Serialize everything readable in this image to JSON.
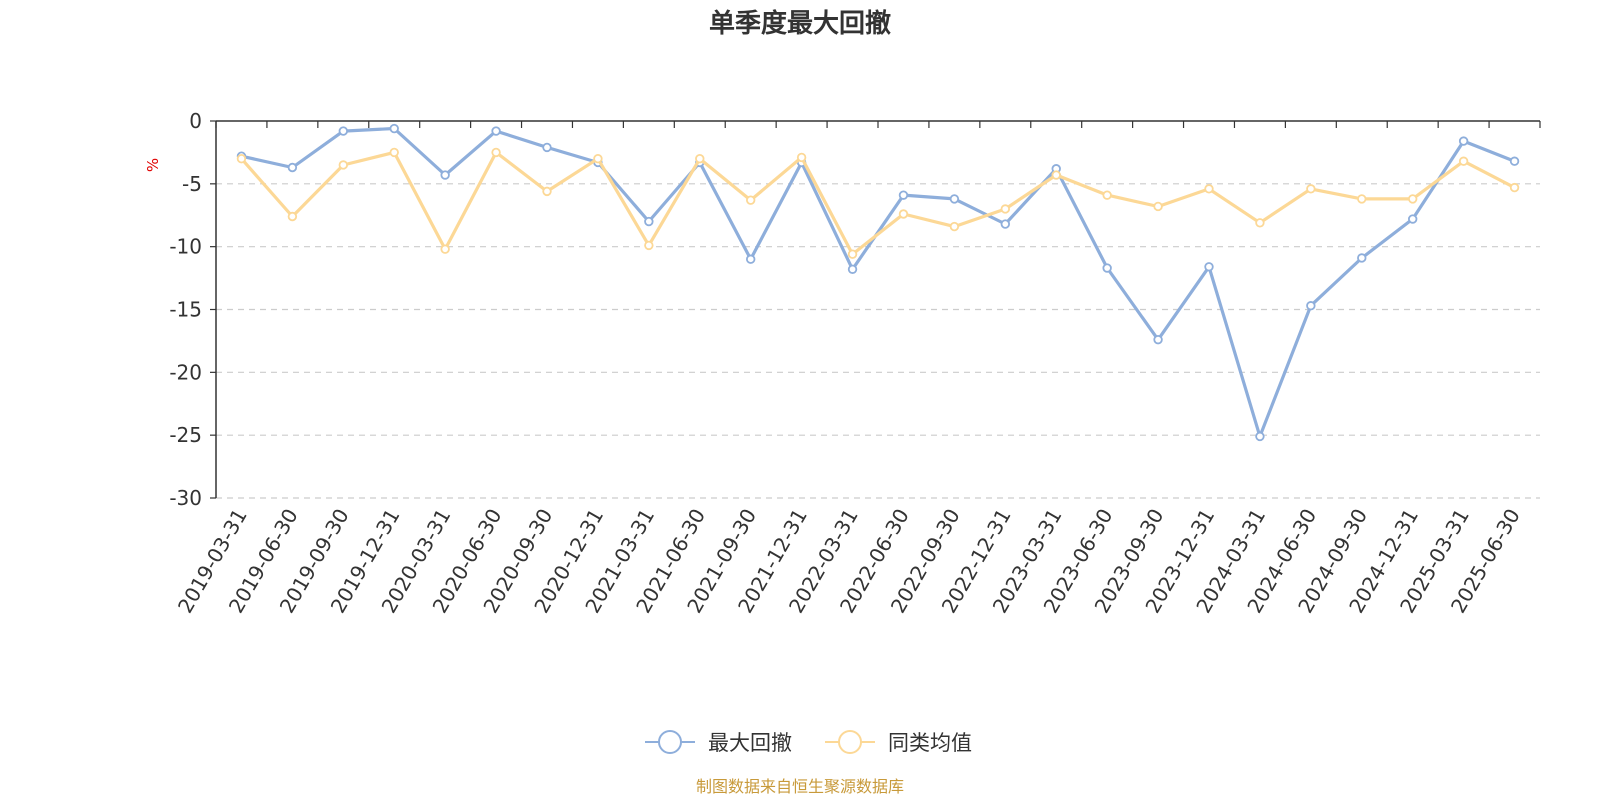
{
  "chart_data": {
    "type": "line",
    "title": "单季度最大回撤",
    "ylabel": "%",
    "ylim": [
      -30,
      0
    ],
    "yticks": [
      0,
      -5,
      -10,
      -15,
      -20,
      -25,
      -30
    ],
    "grid": true,
    "legend_position": "bottom",
    "categories": [
      "2019-03-31",
      "2019-06-30",
      "2019-09-30",
      "2019-12-31",
      "2020-03-31",
      "2020-06-30",
      "2020-09-30",
      "2020-12-31",
      "2021-03-31",
      "2021-06-30",
      "2021-09-30",
      "2021-12-31",
      "2022-03-31",
      "2022-06-30",
      "2022-09-30",
      "2022-12-31",
      "2023-03-31",
      "2023-06-30",
      "2023-09-30",
      "2023-12-31",
      "2024-03-31",
      "2024-06-30",
      "2024-09-30",
      "2024-12-31",
      "2025-03-31",
      "2025-06-30"
    ],
    "series": [
      {
        "name": "最大回撤",
        "color": "#8eaedb",
        "values": [
          -2.8,
          -3.7,
          -0.8,
          -0.6,
          -4.3,
          -0.8,
          -2.1,
          -3.3,
          -8.0,
          -3.3,
          -11.0,
          -3.3,
          -11.8,
          -5.9,
          -6.2,
          -8.2,
          -3.8,
          -11.7,
          -17.4,
          -11.6,
          -25.1,
          -14.7,
          -10.9,
          -7.8,
          -1.6,
          -3.2
        ]
      },
      {
        "name": "同类均值",
        "color": "#fcd896",
        "values": [
          -3.0,
          -7.6,
          -3.5,
          -2.5,
          -10.2,
          -2.5,
          -5.6,
          -3.0,
          -9.9,
          -3.0,
          -6.3,
          -2.9,
          -10.6,
          -7.4,
          -8.4,
          -7.0,
          -4.3,
          -5.9,
          -6.8,
          -5.4,
          -8.1,
          -5.4,
          -6.2,
          -6.2,
          -3.2,
          -5.3
        ]
      }
    ]
  },
  "footer": {
    "source": "制图数据来自恒生聚源数据库"
  }
}
